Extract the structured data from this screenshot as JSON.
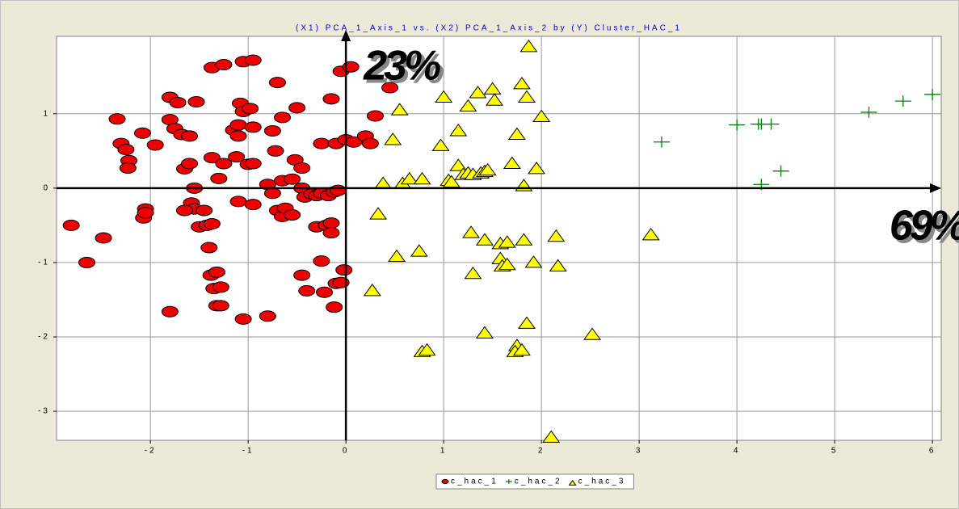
{
  "chart_data": {
    "type": "scatter",
    "title": "(X1) PCA_1_Axis_1 vs. (X2) PCA_1_Axis_2 by (Y) Cluster_HAC_1",
    "annotations": [
      "23%",
      "69%"
    ],
    "xlim": [
      -2.96,
      6.09
    ],
    "ylim": [
      -3.39,
      2.04
    ],
    "xticks": [
      -2,
      -1,
      0,
      1,
      2,
      3,
      4,
      5,
      6
    ],
    "yticks": [
      -3,
      -2,
      -1,
      0,
      1
    ],
    "grid": true,
    "legend": "bottom",
    "series": [
      {
        "name": "c_hac_1",
        "color": "#ee0000",
        "marker": "circle",
        "x": [
          -2.81,
          -2.65,
          -2.48,
          -2.34,
          -2.3,
          -2.25,
          -2.22,
          -2.23,
          -2.08,
          -2.05,
          -2.07,
          -2.05,
          -1.95,
          -1.8,
          -1.8,
          -1.75,
          -1.72,
          -1.68,
          -1.6,
          -1.65,
          -1.6,
          -1.53,
          -1.55,
          -1.58,
          -1.55,
          -1.65,
          -1.5,
          -1.45,
          -1.42,
          -1.37,
          -1.4,
          -1.38,
          -1.32,
          -1.35,
          -1.28,
          -1.32,
          -1.28,
          -1.8,
          -1.05,
          -1.37,
          -1.25,
          -1.05,
          -0.95,
          -1.37,
          -1.3,
          -1.25,
          -1.15,
          -1.1,
          -1.08,
          -1.05,
          -0.98,
          -1.1,
          -1.12,
          -1.0,
          -0.95,
          -0.95,
          -0.75,
          -0.65,
          -0.7,
          -0.5,
          -1.1,
          -0.95,
          -0.8,
          -0.75,
          -0.7,
          -0.65,
          -0.62,
          -0.55,
          -0.72,
          -0.65,
          -0.55,
          -0.52,
          -0.45,
          -0.45,
          -0.42,
          -0.35,
          -0.3,
          -0.25,
          -0.18,
          -0.12,
          -0.08,
          -0.3,
          -0.2,
          -0.15,
          -0.15,
          -0.45,
          -0.4,
          -0.25,
          -0.22,
          -0.12,
          -0.1,
          -0.05,
          -0.02,
          -0.8,
          -0.25,
          -0.1,
          -0.05,
          0.05,
          -0.15,
          0.0,
          0.08,
          0.2,
          0.25,
          0.3,
          0.45
        ],
        "values": [
          -0.5,
          -1.0,
          -0.67,
          0.93,
          0.6,
          0.52,
          0.37,
          0.27,
          0.74,
          -0.28,
          -0.4,
          -0.33,
          0.58,
          1.22,
          0.92,
          0.8,
          1.15,
          0.72,
          0.7,
          0.26,
          0.33,
          1.16,
          0.0,
          -0.2,
          -0.28,
          -0.3,
          -0.52,
          -0.3,
          -0.5,
          -0.48,
          -0.8,
          -1.17,
          -1.13,
          -1.35,
          -1.33,
          -1.58,
          -1.58,
          -1.66,
          -1.76,
          1.62,
          1.66,
          1.7,
          1.72,
          0.41,
          0.13,
          0.33,
          0.78,
          0.85,
          1.14,
          1.03,
          1.07,
          0.7,
          0.42,
          0.32,
          0.33,
          0.82,
          0.77,
          0.95,
          1.42,
          1.08,
          -0.18,
          -0.22,
          0.05,
          -0.07,
          -0.3,
          -0.38,
          -0.27,
          -0.36,
          0.5,
          0.1,
          0.12,
          0.38,
          0.27,
          0.0,
          -0.12,
          -0.08,
          -0.1,
          -0.07,
          -0.1,
          -0.05,
          -0.03,
          -0.52,
          -0.5,
          -0.47,
          -0.6,
          -1.17,
          -1.38,
          -0.98,
          -1.4,
          -1.6,
          -1.28,
          -1.27,
          -1.1,
          -1.72,
          0.6,
          0.6,
          1.57,
          1.63,
          1.2,
          0.65,
          0.62,
          0.7,
          0.6,
          0.97,
          1.35
        ]
      },
      {
        "name": "c_hac_2",
        "color": "#008000",
        "marker": "plus",
        "x": [
          3.23,
          4.0,
          4.22,
          4.25,
          4.35,
          4.25,
          4.45,
          5.35,
          5.7,
          6.0
        ],
        "values": [
          0.62,
          0.85,
          0.86,
          0.86,
          0.86,
          0.05,
          0.23,
          1.02,
          1.17,
          1.26
        ]
      },
      {
        "name": "c_hac_3",
        "color": "#ffff00",
        "marker": "triangle",
        "x": [
          1.87,
          1.0,
          0.55,
          1.25,
          1.35,
          1.5,
          1.52,
          1.8,
          1.85,
          2.0,
          1.15,
          1.75,
          0.48,
          0.97,
          1.7,
          1.95,
          1.15,
          1.2,
          1.25,
          1.3,
          1.38,
          1.42,
          1.45,
          1.05,
          1.08,
          0.38,
          0.58,
          0.65,
          0.78,
          1.82,
          0.33,
          1.28,
          1.42,
          1.58,
          1.65,
          1.82,
          2.15,
          3.12,
          0.52,
          0.75,
          1.58,
          1.6,
          1.65,
          1.92,
          2.17,
          1.3,
          0.27,
          1.85,
          1.42,
          2.52,
          1.75,
          1.73,
          1.8,
          0.78,
          0.83,
          2.1
        ],
        "values": [
          1.9,
          1.22,
          1.05,
          1.1,
          1.28,
          1.33,
          1.18,
          1.4,
          1.22,
          0.96,
          0.77,
          0.72,
          0.65,
          0.57,
          0.33,
          0.26,
          0.3,
          0.18,
          0.2,
          0.18,
          0.2,
          0.22,
          0.24,
          0.1,
          0.08,
          0.06,
          0.06,
          0.12,
          0.12,
          0.03,
          -0.35,
          -0.6,
          -0.7,
          -0.75,
          -0.73,
          -0.7,
          -0.65,
          -0.63,
          -0.92,
          -0.85,
          -0.95,
          -1.05,
          -1.03,
          -1.0,
          -1.05,
          -1.15,
          -1.38,
          -1.82,
          -1.95,
          -1.97,
          -2.12,
          -2.2,
          -2.18,
          -2.2,
          -2.18,
          -3.35
        ]
      }
    ]
  }
}
